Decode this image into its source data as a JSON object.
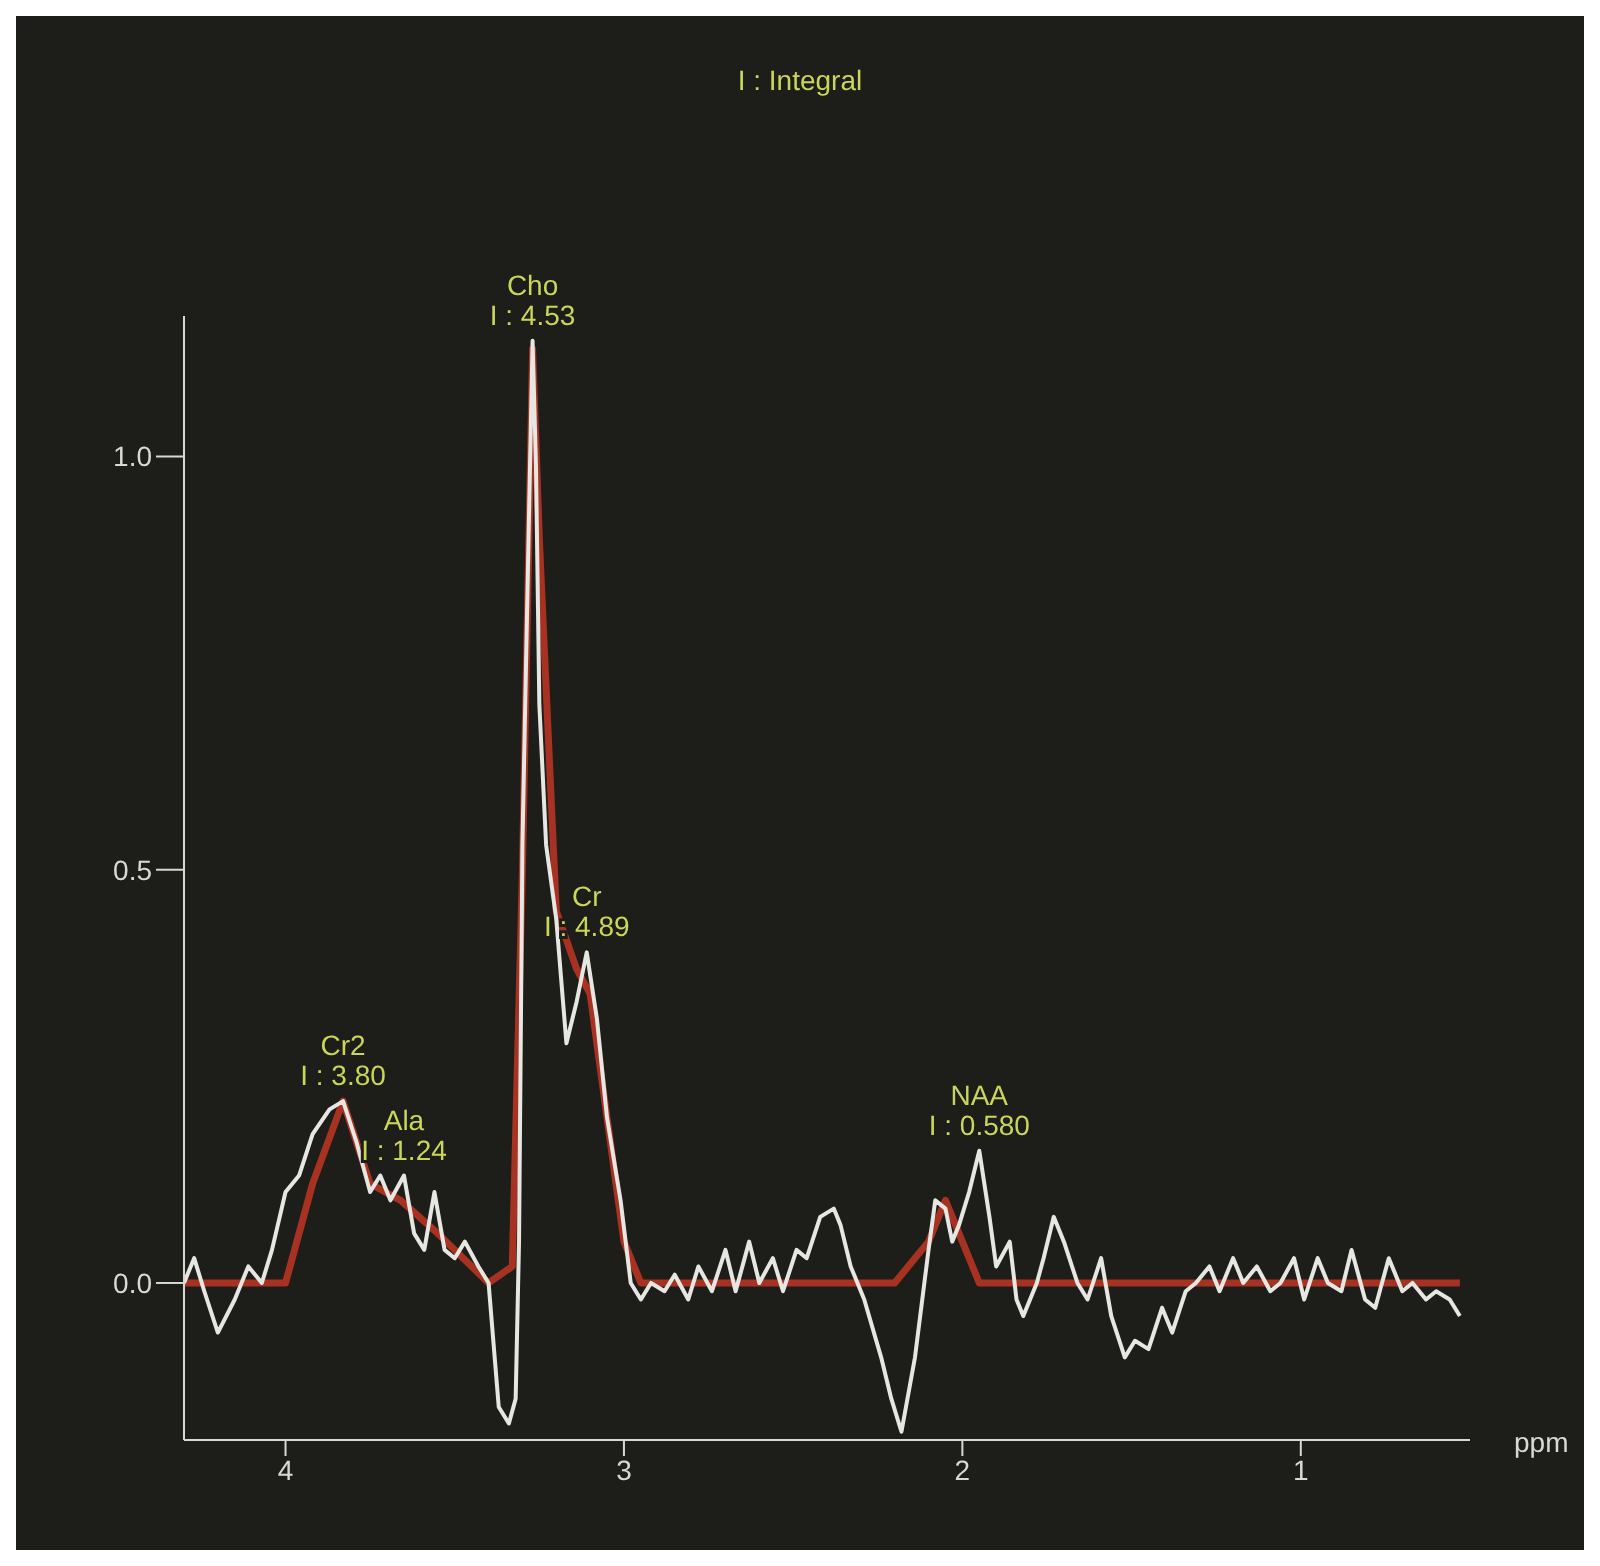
{
  "chart_data": {
    "type": "line",
    "title": "I : Integral",
    "xlabel": "ppm",
    "xlim": [
      4.3,
      0.5
    ],
    "xticks": [
      4,
      3,
      2,
      1
    ],
    "ylim": [
      -0.19,
      1.17
    ],
    "yticks": [
      {
        "value": 0,
        "label": "0.0"
      },
      {
        "value": 0.5,
        "label": "0.5"
      },
      {
        "value": 1,
        "label": "1.0"
      }
    ],
    "grid": false,
    "marker": "none",
    "line_style": "solid",
    "annotations": [
      {
        "text": "Cho\nI : 4.53",
        "x": 3.27,
        "y": 1.14
      },
      {
        "text": "Cr\nI : 4.89",
        "x": 3.11,
        "y": 0.4
      },
      {
        "text": "Cr2\nI : 3.80",
        "x": 3.83,
        "y": 0.22
      },
      {
        "text": "Ala\nI : 1.24",
        "x": 3.65,
        "y": 0.13
      },
      {
        "text": "NAA\nI : 0.580",
        "x": 1.95,
        "y": 0.16
      }
    ],
    "series": [
      {
        "color": "#e6e6e2",
        "x": [
          4.3,
          4.27,
          4.24,
          4.2,
          4.15,
          4.11,
          4.07,
          4.04,
          4.0,
          3.96,
          3.92,
          3.87,
          3.83,
          3.79,
          3.75,
          3.72,
          3.69,
          3.65,
          3.62,
          3.59,
          3.56,
          3.53,
          3.5,
          3.47,
          3.43,
          3.4,
          3.37,
          3.34,
          3.32,
          3.31,
          3.3,
          3.28,
          3.27,
          3.26,
          3.25,
          3.23,
          3.2,
          3.17,
          3.14,
          3.11,
          3.08,
          3.05,
          3.01,
          2.98,
          2.95,
          2.92,
          2.88,
          2.85,
          2.81,
          2.78,
          2.74,
          2.7,
          2.67,
          2.63,
          2.6,
          2.56,
          2.53,
          2.49,
          2.46,
          2.42,
          2.38,
          2.36,
          2.33,
          2.29,
          2.24,
          2.21,
          2.18,
          2.14,
          2.1,
          2.08,
          2.05,
          2.03,
          2.01,
          1.98,
          1.95,
          1.92,
          1.9,
          1.86,
          1.84,
          1.82,
          1.78,
          1.76,
          1.73,
          1.7,
          1.66,
          1.63,
          1.59,
          1.56,
          1.52,
          1.49,
          1.45,
          1.41,
          1.38,
          1.34,
          1.31,
          1.27,
          1.24,
          1.2,
          1.17,
          1.13,
          1.09,
          1.06,
          1.02,
          0.99,
          0.95,
          0.92,
          0.88,
          0.85,
          0.81,
          0.78,
          0.74,
          0.7,
          0.67,
          0.63,
          0.6,
          0.56,
          0.53
        ],
        "values": [
          0,
          0.03,
          -0.01,
          -0.06,
          -0.02,
          0.02,
          0,
          0.04,
          0.11,
          0.13,
          0.18,
          0.21,
          0.22,
          0.17,
          0.11,
          0.13,
          0.1,
          0.13,
          0.06,
          0.04,
          0.11,
          0.04,
          0.03,
          0.05,
          0.02,
          0,
          -0.15,
          -0.17,
          -0.14,
          0.05,
          0.53,
          0.94,
          1.14,
          0.99,
          0.7,
          0.53,
          0.44,
          0.29,
          0.34,
          0.4,
          0.32,
          0.2,
          0.1,
          0,
          -0.02,
          0,
          -0.01,
          0.01,
          -0.02,
          0.02,
          -0.01,
          0.04,
          -0.01,
          0.05,
          0,
          0.03,
          -0.01,
          0.04,
          0.03,
          0.08,
          0.09,
          0.07,
          0.02,
          -0.02,
          -0.09,
          -0.14,
          -0.18,
          -0.09,
          0.04,
          0.1,
          0.09,
          0.05,
          0.07,
          0.11,
          0.16,
          0.08,
          0.02,
          0.05,
          -0.02,
          -0.04,
          0,
          0.03,
          0.08,
          0.05,
          0,
          -0.02,
          0.03,
          -0.04,
          -0.09,
          -0.07,
          -0.08,
          -0.03,
          -0.06,
          -0.01,
          0,
          0.02,
          -0.01,
          0.03,
          0,
          0.02,
          -0.01,
          0,
          0.03,
          -0.02,
          0.03,
          0,
          -0.01,
          0.04,
          -0.02,
          -0.03,
          0.03,
          -0.01,
          0,
          -0.02,
          -0.01,
          -0.02,
          -0.04
        ]
      },
      {
        "color": "#a83222",
        "x": [
          4.3,
          4.0,
          3.92,
          3.83,
          3.75,
          3.66,
          3.55,
          3.4,
          3.33,
          3.3,
          3.27,
          3.25,
          3.2,
          3.14,
          3.1,
          3.05,
          3.0,
          2.95,
          2.2,
          2.1,
          2.05,
          2.0,
          1.95,
          0.53
        ],
        "values": [
          0,
          0,
          0.12,
          0.22,
          0.12,
          0.1,
          0.06,
          0,
          0.02,
          0.5,
          1.13,
          0.9,
          0.45,
          0.38,
          0.35,
          0.2,
          0.05,
          0,
          0,
          0.05,
          0.1,
          0.05,
          0,
          0
        ]
      }
    ]
  }
}
